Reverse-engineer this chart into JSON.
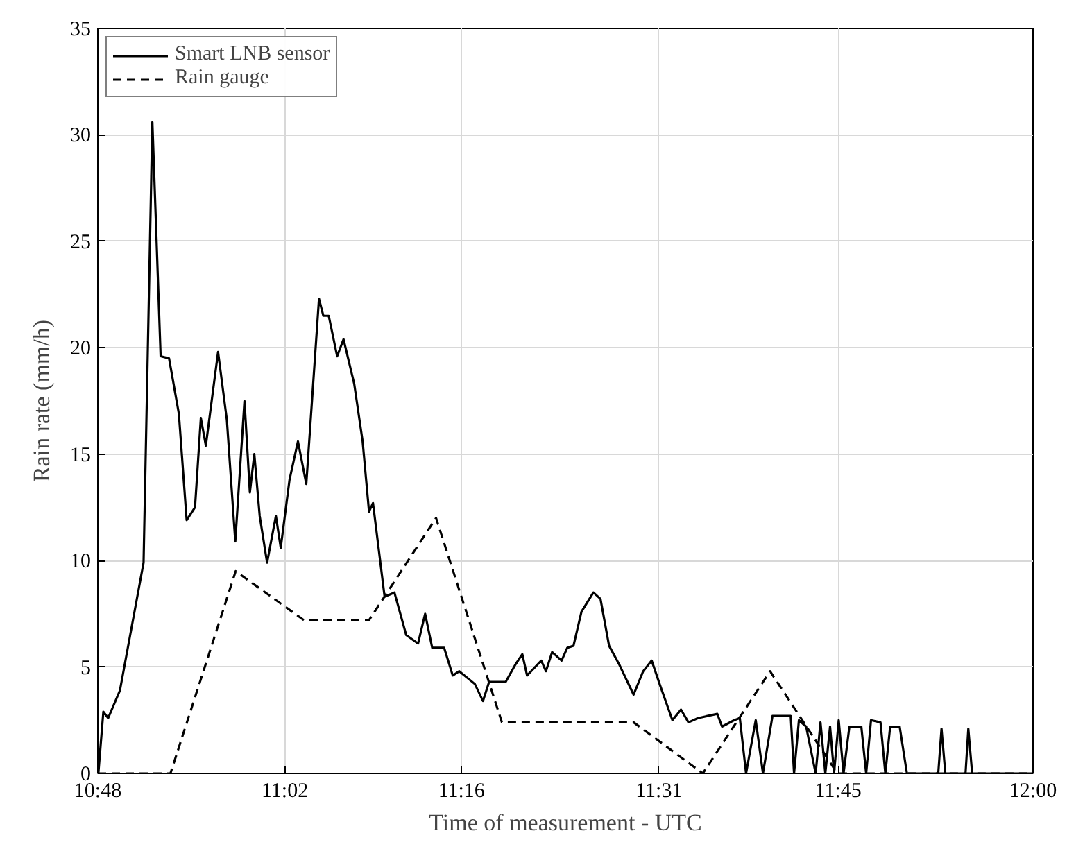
{
  "chart_data": {
    "type": "line",
    "xlabel": "Time of measurement - UTC",
    "ylabel": "Rain rate (mm/h)",
    "xlim": [
      10.8,
      12.0
    ],
    "ylim": [
      0,
      35
    ],
    "xticks": [
      {
        "value": 10.8,
        "label": "10:48"
      },
      {
        "value": 11.04,
        "label": "11:02"
      },
      {
        "value": 11.2667,
        "label": "11:16"
      },
      {
        "value": 11.52,
        "label": "11:31"
      },
      {
        "value": 11.75,
        "label": "11:45"
      },
      {
        "value": 12.0,
        "label": "12:00"
      }
    ],
    "yticks": [
      0,
      5,
      10,
      15,
      20,
      25,
      30,
      35
    ],
    "grid": true,
    "legend": "top left",
    "series": [
      {
        "name": "Smart LNB sensor",
        "color": "#000000",
        "line_style": "solid",
        "x": [
          10.8007,
          10.8071,
          10.8133,
          10.8284,
          10.8587,
          10.87,
          10.8806,
          10.8914,
          10.904,
          10.914,
          10.9247,
          10.9322,
          10.9386,
          10.9543,
          10.9656,
          10.9764,
          10.9882,
          10.9951,
          11.0008,
          11.0077,
          11.0172,
          11.0285,
          11.0347,
          11.046,
          11.0568,
          11.0675,
          11.0838,
          11.0894,
          11.0963,
          11.1071,
          11.1153,
          11.129,
          11.1398,
          11.148,
          11.1531,
          11.168,
          11.1806,
          11.1957,
          11.2109,
          11.22,
          11.2291,
          11.2444,
          11.2554,
          11.2638,
          11.2838,
          11.2942,
          11.3021,
          11.3234,
          11.3356,
          11.3447,
          11.3508,
          11.369,
          11.375,
          11.383,
          11.3951,
          11.4024,
          11.4104,
          11.4206,
          11.4359,
          11.445,
          11.456,
          11.4693,
          11.4875,
          11.4998,
          11.5107,
          11.5209,
          11.5373,
          11.5483,
          11.5579,
          11.5701,
          11.5824,
          11.5949,
          11.601,
          11.6165,
          11.6238,
          11.6318,
          11.6442,
          11.6535,
          11.6657,
          11.6891,
          11.6934,
          11.6996,
          11.7089,
          11.7211,
          11.7273,
          11.7335,
          11.7396,
          11.7447,
          11.7507,
          11.7569,
          11.7644,
          11.7797,
          11.7859,
          11.7921,
          11.8043,
          11.8105,
          11.8167,
          11.8289,
          11.8382,
          11.8784,
          11.8826,
          11.8875,
          11.9134,
          11.917,
          11.9219,
          12.0
        ],
        "values": [
          0,
          2.9,
          2.6,
          3.9,
          9.9,
          30.6,
          19.6,
          19.5,
          16.9,
          11.9,
          12.5,
          16.7,
          15.4,
          19.8,
          16.6,
          10.9,
          17.5,
          13.2,
          15.0,
          12.1,
          9.9,
          12.1,
          10.6,
          13.8,
          15.6,
          13.6,
          22.3,
          21.5,
          21.5,
          19.6,
          20.4,
          18.3,
          15.6,
          12.3,
          12.7,
          8.3,
          8.5,
          6.5,
          6.1,
          7.5,
          5.9,
          5.9,
          4.6,
          4.8,
          4.2,
          3.4,
          4.3,
          4.3,
          5.1,
          5.6,
          4.6,
          5.3,
          4.8,
          5.7,
          5.3,
          5.9,
          6.0,
          7.6,
          8.5,
          8.2,
          6.0,
          5.1,
          3.7,
          4.8,
          5.3,
          4.2,
          2.5,
          3.0,
          2.4,
          2.6,
          2.7,
          2.8,
          2.2,
          2.5,
          2.6,
          0,
          2.5,
          0,
          2.7,
          2.7,
          0,
          2.5,
          2.2,
          0,
          2.4,
          0,
          2.2,
          0,
          2.5,
          0,
          2.2,
          2.2,
          0,
          2.5,
          2.4,
          0,
          2.2,
          2.2,
          0,
          0,
          2.1,
          0,
          0,
          2.1,
          0,
          0
        ]
      },
      {
        "name": "Rain gauge",
        "color": "#000000",
        "line_style": "dashed",
        "x": [
          10.8,
          10.8932,
          10.9769,
          11.0644,
          11.148,
          11.234,
          11.3185,
          11.4875,
          11.5763,
          11.6626,
          11.7489,
          12.0
        ],
        "values": [
          0,
          0,
          9.5,
          7.2,
          7.2,
          12.0,
          2.4,
          2.4,
          0,
          4.8,
          0,
          0
        ]
      }
    ]
  }
}
